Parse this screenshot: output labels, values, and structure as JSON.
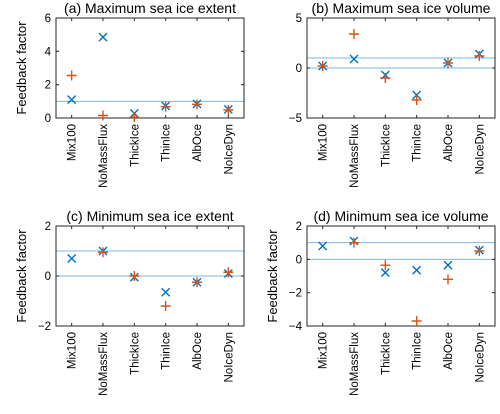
{
  "chart_data": [
    {
      "type": "scatter",
      "title": "(a) Maximum sea ice extent",
      "ylabel": "Feedback factor",
      "categories": [
        "Mix100",
        "NoMassFlux",
        "ThickIce",
        "ThinIce",
        "AlbOce",
        "NoIceDyn"
      ],
      "ylim": [
        0,
        6
      ],
      "yticks": [
        0,
        2,
        4,
        6
      ],
      "hlines": [
        0,
        1
      ],
      "series": [
        {
          "marker": "x",
          "color": "#0072BD",
          "values": [
            1.1,
            4.85,
            0.28,
            0.72,
            0.85,
            0.52
          ]
        },
        {
          "marker": "+",
          "color": "#D95319",
          "values": [
            2.55,
            0.15,
            0.05,
            0.68,
            0.82,
            0.48
          ]
        }
      ]
    },
    {
      "type": "scatter",
      "title": "(b) Maximum sea ice volume",
      "ylabel": "",
      "categories": [
        "Mix100",
        "NoMassFlux",
        "ThickIce",
        "ThinIce",
        "AlbOce",
        "NoIceDyn"
      ],
      "ylim": [
        -5,
        5
      ],
      "yticks": [
        -5,
        0,
        5
      ],
      "hlines": [
        0,
        1
      ],
      "series": [
        {
          "marker": "x",
          "color": "#0072BD",
          "values": [
            0.2,
            0.9,
            -0.7,
            -2.7,
            0.5,
            1.4
          ]
        },
        {
          "marker": "+",
          "color": "#D95319",
          "values": [
            0.2,
            3.4,
            -1.0,
            -3.2,
            0.5,
            1.2
          ]
        }
      ]
    },
    {
      "type": "scatter",
      "title": "(c) Minimum sea ice extent",
      "ylabel": "Feedback factor",
      "categories": [
        "Mix100",
        "NoMassFlux",
        "ThickIce",
        "ThinIce",
        "AlbOce",
        "NoIceDyn"
      ],
      "ylim": [
        -2,
        2
      ],
      "yticks": [
        -2,
        0,
        2
      ],
      "hlines": [
        0,
        1
      ],
      "series": [
        {
          "marker": "x",
          "color": "#0072BD",
          "values": [
            0.7,
            1.0,
            -0.05,
            -0.65,
            -0.25,
            0.1
          ]
        },
        {
          "marker": "+",
          "color": "#D95319",
          "values": [
            null,
            0.95,
            0.0,
            -1.2,
            -0.25,
            0.15
          ]
        }
      ]
    },
    {
      "type": "scatter",
      "title": "(d) Minimum sea ice volume",
      "ylabel": "Feedback factor",
      "categories": [
        "Mix100",
        "NoMassFlux",
        "ThickIce",
        "ThinIce",
        "AlbOce",
        "NoIceDyn"
      ],
      "ylim": [
        -4,
        2
      ],
      "yticks": [
        -4,
        -2,
        0,
        2
      ],
      "hlines": [
        0,
        1
      ],
      "series": [
        {
          "marker": "x",
          "color": "#0072BD",
          "values": [
            0.8,
            1.1,
            -0.8,
            -0.65,
            -0.35,
            0.55
          ]
        },
        {
          "marker": "+",
          "color": "#D95319",
          "values": [
            null,
            1.0,
            -0.35,
            -3.7,
            -1.2,
            0.5
          ]
        }
      ]
    }
  ]
}
